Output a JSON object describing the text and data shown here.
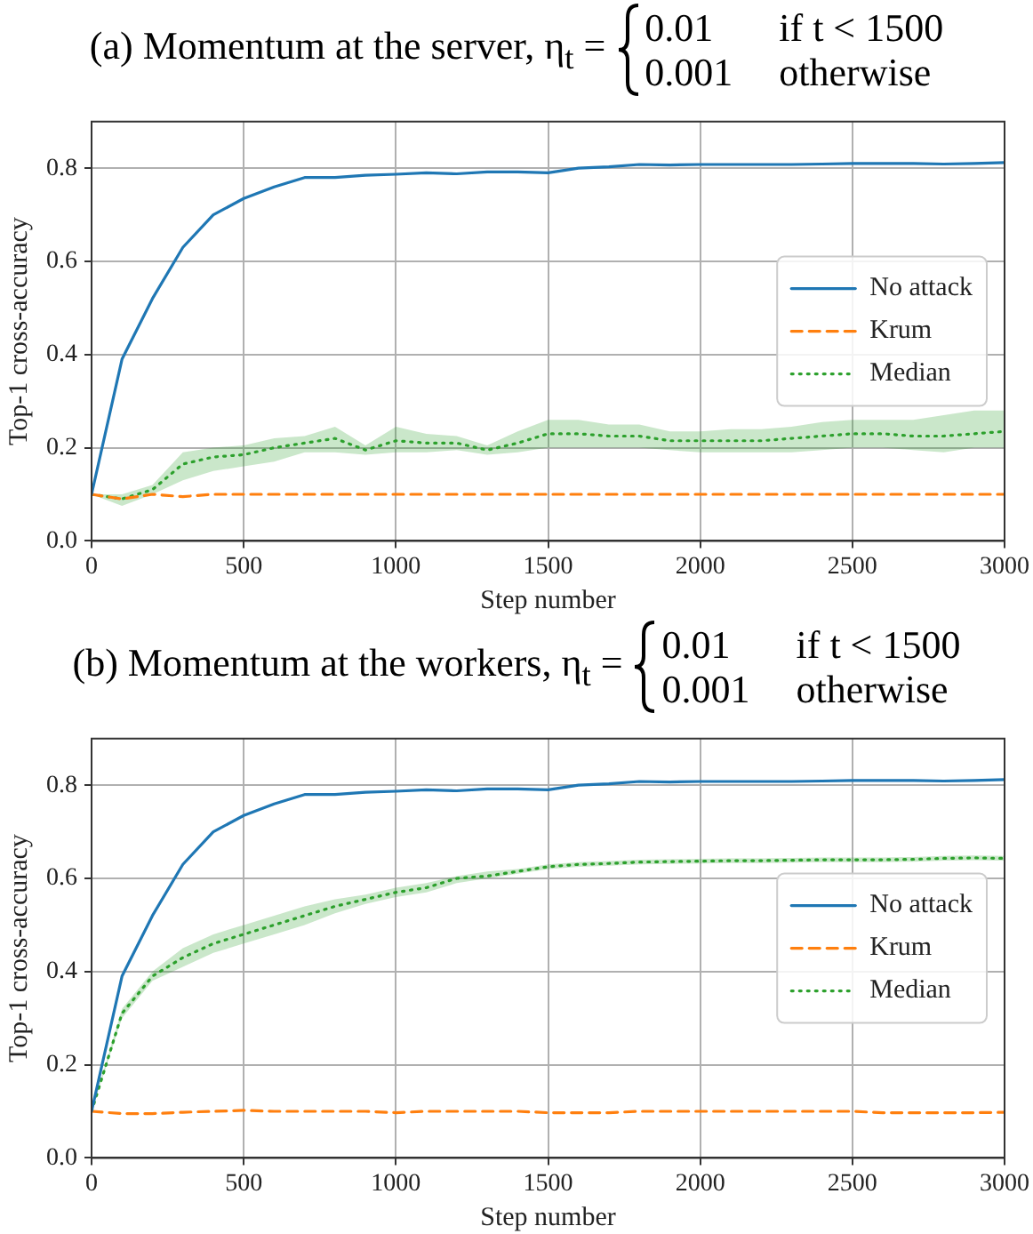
{
  "chart_data": [
    {
      "type": "line",
      "title": "(a) Momentum at the server, η$_{t}$ =",
      "annotations": [
        "0.01",
        "if t < 1500",
        "0.001",
        "otherwise"
      ],
      "xlabel": "Step number",
      "ylabel": "Top-1 cross-accuracy",
      "x": [
        0,
        100,
        200,
        300,
        400,
        500,
        600,
        700,
        800,
        900,
        1000,
        1100,
        1200,
        1300,
        1400,
        1500,
        1600,
        1700,
        1800,
        1900,
        2000,
        2100,
        2200,
        2300,
        2400,
        2500,
        2600,
        2700,
        2800,
        2900,
        3000
      ],
      "series": [
        {
          "name": "No attack",
          "color": "#1f77b4",
          "line_style": "solid",
          "values": [
            0.1,
            0.39,
            0.52,
            0.63,
            0.7,
            0.735,
            0.76,
            0.78,
            0.78,
            0.785,
            0.787,
            0.79,
            0.788,
            0.792,
            0.792,
            0.79,
            0.8,
            0.803,
            0.808,
            0.807,
            0.808,
            0.808,
            0.808,
            0.808,
            0.809,
            0.81,
            0.81,
            0.81,
            0.809,
            0.81,
            0.812
          ]
        },
        {
          "name": "Krum",
          "color": "#ff7f0e",
          "line_style": "dashed",
          "values": [
            0.1,
            0.09,
            0.1,
            0.095,
            0.1,
            0.1,
            0.1,
            0.1,
            0.1,
            0.1,
            0.1,
            0.1,
            0.1,
            0.1,
            0.1,
            0.1,
            0.1,
            0.1,
            0.1,
            0.1,
            0.1,
            0.1,
            0.1,
            0.1,
            0.1,
            0.1,
            0.1,
            0.1,
            0.1,
            0.1,
            0.1
          ]
        },
        {
          "name": "Median",
          "color": "#2ca02c",
          "line_style": "dotted",
          "values": [
            0.1,
            0.09,
            0.11,
            0.165,
            0.18,
            0.185,
            0.2,
            0.21,
            0.22,
            0.195,
            0.215,
            0.21,
            0.21,
            0.195,
            0.21,
            0.23,
            0.23,
            0.225,
            0.225,
            0.215,
            0.215,
            0.215,
            0.215,
            0.22,
            0.225,
            0.23,
            0.23,
            0.225,
            0.225,
            0.23,
            0.235
          ],
          "lower": [
            0.1,
            0.075,
            0.1,
            0.13,
            0.15,
            0.16,
            0.17,
            0.19,
            0.19,
            0.185,
            0.19,
            0.19,
            0.195,
            0.185,
            0.19,
            0.2,
            0.2,
            0.2,
            0.2,
            0.195,
            0.19,
            0.19,
            0.19,
            0.19,
            0.195,
            0.2,
            0.2,
            0.195,
            0.19,
            0.2,
            0.2
          ],
          "upper": [
            0.1,
            0.1,
            0.12,
            0.19,
            0.2,
            0.205,
            0.22,
            0.225,
            0.245,
            0.205,
            0.245,
            0.23,
            0.225,
            0.205,
            0.235,
            0.26,
            0.26,
            0.25,
            0.25,
            0.235,
            0.235,
            0.24,
            0.24,
            0.245,
            0.255,
            0.26,
            0.26,
            0.26,
            0.27,
            0.28,
            0.28
          ]
        }
      ],
      "xlim": [
        0,
        3000
      ],
      "xticks": [
        0,
        500,
        1000,
        1500,
        2000,
        2500,
        3000
      ],
      "ylim": [
        0,
        0.9
      ],
      "yticks": [
        {
          "value": 0,
          "label": "0.0"
        },
        {
          "value": 0.2,
          "label": "0.2"
        },
        {
          "value": 0.4,
          "label": "0.4"
        },
        {
          "value": 0.6,
          "label": "0.6"
        },
        {
          "value": 0.8,
          "label": "0.8"
        }
      ],
      "grid": true,
      "legend": "center right",
      "marker": "none"
    },
    {
      "type": "line",
      "title": "(b) Momentum at the workers, η$_{t}$ =",
      "annotations": [
        "0.01",
        "if t < 1500",
        "0.001",
        "otherwise"
      ],
      "xlabel": "Step number",
      "ylabel": "Top-1 cross-accuracy",
      "x": [
        0,
        100,
        200,
        300,
        400,
        500,
        600,
        700,
        800,
        900,
        1000,
        1100,
        1200,
        1300,
        1400,
        1500,
        1600,
        1700,
        1800,
        1900,
        2000,
        2100,
        2200,
        2300,
        2400,
        2500,
        2600,
        2700,
        2800,
        2900,
        3000
      ],
      "series": [
        {
          "name": "No attack",
          "color": "#1f77b4",
          "line_style": "solid",
          "values": [
            0.1,
            0.39,
            0.52,
            0.63,
            0.7,
            0.735,
            0.76,
            0.78,
            0.78,
            0.785,
            0.787,
            0.79,
            0.788,
            0.792,
            0.792,
            0.79,
            0.8,
            0.803,
            0.808,
            0.807,
            0.808,
            0.808,
            0.808,
            0.808,
            0.809,
            0.81,
            0.81,
            0.81,
            0.809,
            0.81,
            0.812
          ]
        },
        {
          "name": "Krum",
          "color": "#ff7f0e",
          "line_style": "dashed",
          "values": [
            0.1,
            0.095,
            0.095,
            0.098,
            0.1,
            0.102,
            0.1,
            0.1,
            0.1,
            0.1,
            0.097,
            0.1,
            0.1,
            0.1,
            0.1,
            0.097,
            0.097,
            0.097,
            0.1,
            0.1,
            0.1,
            0.1,
            0.1,
            0.1,
            0.1,
            0.1,
            0.097,
            0.097,
            0.097,
            0.097,
            0.098
          ]
        },
        {
          "name": "Median",
          "color": "#2ca02c",
          "line_style": "dotted",
          "values": [
            0.1,
            0.31,
            0.39,
            0.43,
            0.46,
            0.48,
            0.5,
            0.52,
            0.54,
            0.555,
            0.57,
            0.58,
            0.6,
            0.605,
            0.615,
            0.625,
            0.63,
            0.632,
            0.635,
            0.636,
            0.637,
            0.638,
            0.638,
            0.639,
            0.64,
            0.64,
            0.64,
            0.641,
            0.643,
            0.644,
            0.643
          ],
          "lower": [
            0.1,
            0.3,
            0.38,
            0.41,
            0.44,
            0.46,
            0.48,
            0.5,
            0.525,
            0.545,
            0.56,
            0.57,
            0.59,
            0.6,
            0.61,
            0.62,
            0.625,
            0.627,
            0.63,
            0.631,
            0.632,
            0.633,
            0.633,
            0.634,
            0.635,
            0.635,
            0.635,
            0.636,
            0.638,
            0.639,
            0.638
          ],
          "upper": [
            0.1,
            0.32,
            0.4,
            0.45,
            0.48,
            0.5,
            0.52,
            0.54,
            0.555,
            0.565,
            0.58,
            0.59,
            0.605,
            0.615,
            0.62,
            0.63,
            0.635,
            0.637,
            0.64,
            0.641,
            0.642,
            0.643,
            0.643,
            0.644,
            0.645,
            0.645,
            0.645,
            0.646,
            0.648,
            0.649,
            0.648
          ]
        }
      ],
      "xlim": [
        0,
        3000
      ],
      "xticks": [
        0,
        500,
        1000,
        1500,
        2000,
        2500,
        3000
      ],
      "ylim": [
        0,
        0.9
      ],
      "yticks": [
        {
          "value": 0,
          "label": "0.0"
        },
        {
          "value": 0.2,
          "label": "0.2"
        },
        {
          "value": 0.4,
          "label": "0.4"
        },
        {
          "value": 0.6,
          "label": "0.6"
        },
        {
          "value": 0.8,
          "label": "0.8"
        }
      ],
      "grid": true,
      "legend": "center right",
      "marker": "none"
    }
  ]
}
